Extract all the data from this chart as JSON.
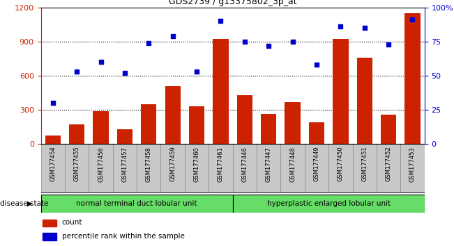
{
  "title": "GDS2739 / g13375802_3p_at",
  "samples": [
    "GSM177454",
    "GSM177455",
    "GSM177456",
    "GSM177457",
    "GSM177458",
    "GSM177459",
    "GSM177460",
    "GSM177461",
    "GSM177446",
    "GSM177447",
    "GSM177448",
    "GSM177449",
    "GSM177450",
    "GSM177451",
    "GSM177452",
    "GSM177453"
  ],
  "counts": [
    75,
    170,
    290,
    130,
    350,
    510,
    330,
    920,
    430,
    265,
    370,
    190,
    920,
    760,
    255,
    1150
  ],
  "percentiles": [
    30,
    53,
    60,
    52,
    74,
    79,
    53,
    90,
    75,
    72,
    75,
    58,
    86,
    85,
    73,
    91
  ],
  "group1_label": "normal terminal duct lobular unit",
  "group2_label": "hyperplastic enlarged lobular unit",
  "group1_count": 8,
  "group2_count": 8,
  "bar_color": "#cc2200",
  "dot_color": "#0000cc",
  "group_color": "#66dd66",
  "tick_bg_color": "#c8c8c8",
  "ylim_left": [
    0,
    1200
  ],
  "ylim_right": [
    0,
    100
  ],
  "yticks_left": [
    0,
    300,
    600,
    900,
    1200
  ],
  "yticks_right": [
    0,
    25,
    50,
    75,
    100
  ],
  "grid_values": [
    300,
    600,
    900
  ],
  "disease_state_label": "disease state"
}
